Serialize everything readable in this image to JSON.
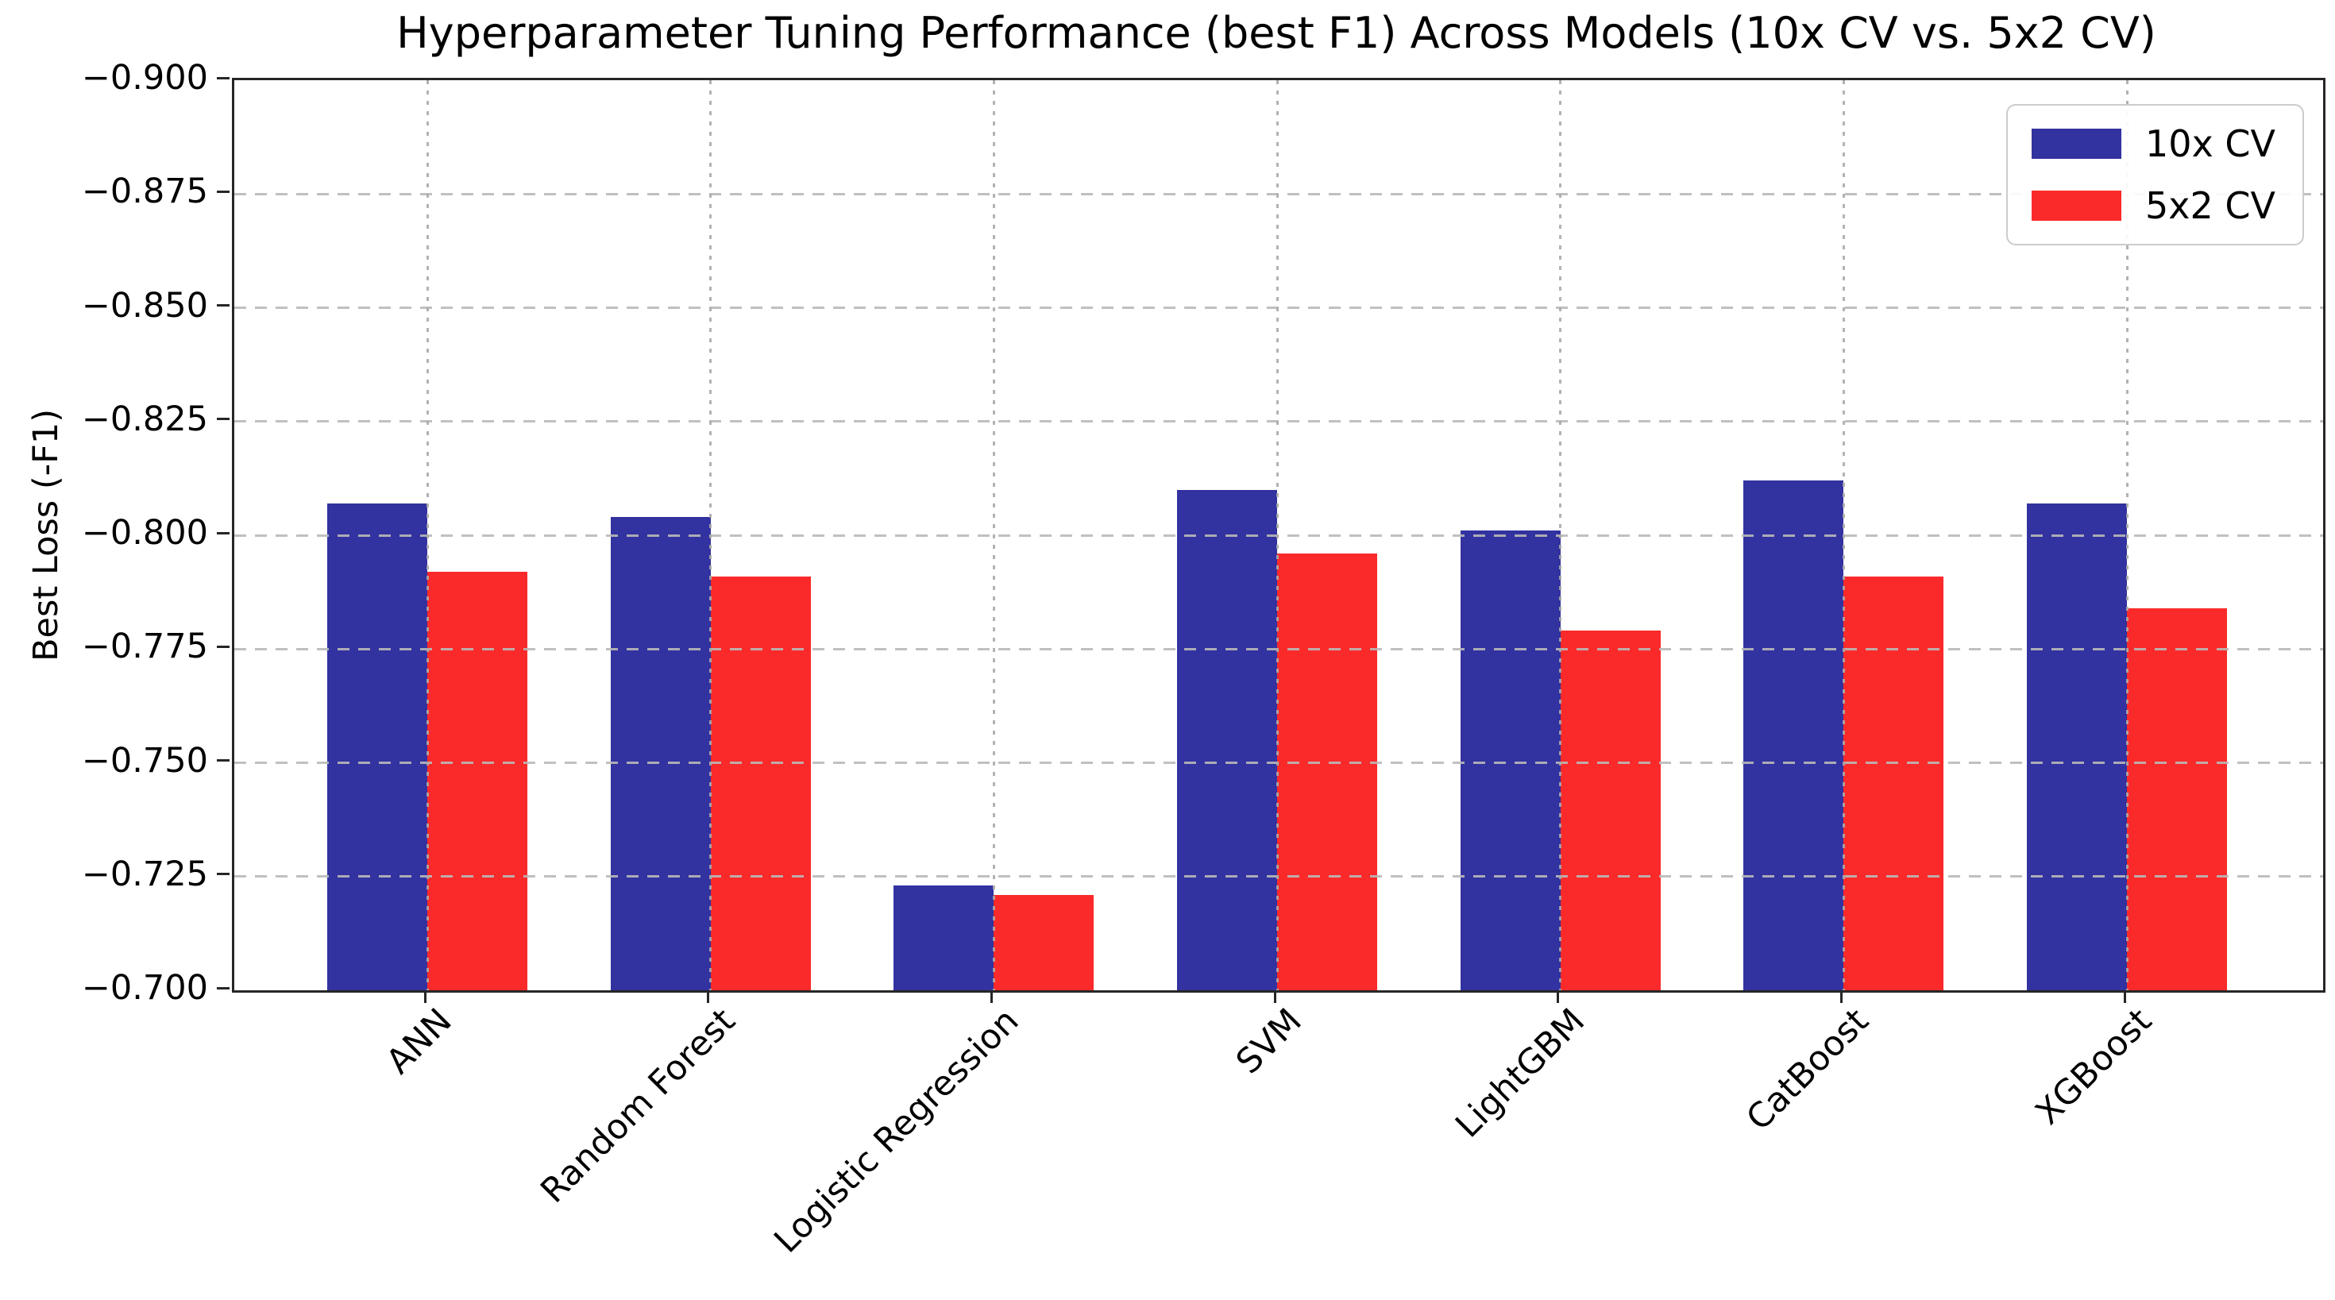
{
  "chart_data": {
    "type": "bar",
    "title": "Hyperparameter Tuning Performance (best F1) Across Models (10x CV vs. 5x2 CV)",
    "xlabel": "",
    "ylabel": "Best Loss (-F1)",
    "categories": [
      "ANN",
      "Random Forest",
      "Logistic Regression",
      "SVM",
      "LightGBM",
      "CatBoost",
      "XGBoost"
    ],
    "series": [
      {
        "name": "10x CV",
        "color": "#3232A0",
        "values": [
          -0.807,
          -0.804,
          -0.723,
          -0.81,
          -0.801,
          -0.812,
          -0.807
        ]
      },
      {
        "name": "5x2 CV",
        "color": "#FA2A2A",
        "values": [
          -0.792,
          -0.791,
          -0.721,
          -0.796,
          -0.779,
          -0.791,
          -0.784
        ]
      }
    ],
    "y_axis": {
      "top_value": -0.9,
      "bottom_value": -0.7,
      "inverted": true,
      "ticks": [
        -0.9,
        -0.875,
        -0.85,
        -0.825,
        -0.8,
        -0.775,
        -0.75,
        -0.725,
        -0.7
      ],
      "tick_labels": [
        "−0.900",
        "−0.875",
        "−0.850",
        "−0.825",
        "−0.800",
        "−0.775",
        "−0.750",
        "−0.725",
        "−0.700"
      ]
    },
    "grid": {
      "horizontal": "dashed",
      "vertical": "dotted",
      "drawn_above_bars": true
    },
    "legend_position": "upper right",
    "bar_baseline_value": -0.7
  }
}
